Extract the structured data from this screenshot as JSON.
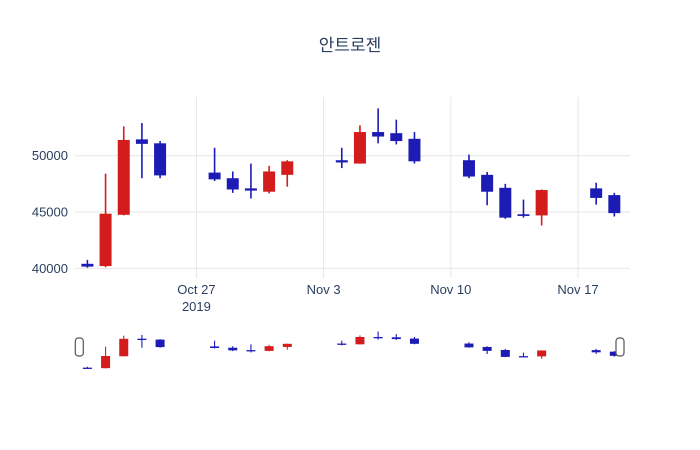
{
  "title": "안트로젠",
  "colors": {
    "background": "#ffffff",
    "text": "#2a3f5f",
    "grid": "#e6e6e6",
    "increasing": "#d41c1c",
    "decreasing": "#1c1cb4",
    "handle_fill": "#ffffff",
    "handle_border": "#555555"
  },
  "chart_data": {
    "type": "candlestick",
    "title": "안트로젠",
    "xlabel": "",
    "ylabel": "",
    "grid": true,
    "legend": false,
    "rangeslider": true,
    "y_ticks": [
      40000,
      45000,
      50000
    ],
    "ylim": [
      39100,
      55250
    ],
    "x_ticks": [
      {
        "label": "Oct 27",
        "sublabel": "2019",
        "day": 6
      },
      {
        "label": "Nov 3",
        "sublabel": "",
        "day": 13
      },
      {
        "label": "Nov 10",
        "sublabel": "",
        "day": 20
      },
      {
        "label": "Nov 17",
        "sublabel": "",
        "day": 27
      }
    ],
    "candles": [
      {
        "date": "2019-10-21",
        "day": 0,
        "open": 40400,
        "high": 40750,
        "low": 40050,
        "close": 40150
      },
      {
        "date": "2019-10-22",
        "day": 1,
        "open": 40200,
        "high": 48400,
        "low": 40100,
        "close": 44850
      },
      {
        "date": "2019-10-23",
        "day": 2,
        "open": 44750,
        "high": 52600,
        "low": 44700,
        "close": 51400
      },
      {
        "date": "2019-10-24",
        "day": 3,
        "open": 51450,
        "high": 52900,
        "low": 48000,
        "close": 51050
      },
      {
        "date": "2019-10-25",
        "day": 4,
        "open": 51100,
        "high": 51300,
        "low": 48000,
        "close": 48250
      },
      {
        "date": "2019-10-28",
        "day": 7,
        "open": 48500,
        "high": 50700,
        "low": 47750,
        "close": 47900
      },
      {
        "date": "2019-10-29",
        "day": 8,
        "open": 48000,
        "high": 48600,
        "low": 46700,
        "close": 47000
      },
      {
        "date": "2019-10-30",
        "day": 9,
        "open": 47100,
        "high": 49300,
        "low": 46200,
        "close": 46900
      },
      {
        "date": "2019-10-31",
        "day": 10,
        "open": 46800,
        "high": 49100,
        "low": 46650,
        "close": 48600
      },
      {
        "date": "2019-11-01",
        "day": 11,
        "open": 48300,
        "high": 49600,
        "low": 47250,
        "close": 49500
      },
      {
        "date": "2019-11-04",
        "day": 14,
        "open": 49600,
        "high": 50700,
        "low": 48900,
        "close": 49400
      },
      {
        "date": "2019-11-05",
        "day": 15,
        "open": 49300,
        "high": 52700,
        "low": 49300,
        "close": 52100
      },
      {
        "date": "2019-11-06",
        "day": 16,
        "open": 52100,
        "high": 54200,
        "low": 51100,
        "close": 51700
      },
      {
        "date": "2019-11-07",
        "day": 17,
        "open": 52000,
        "high": 53200,
        "low": 51000,
        "close": 51300
      },
      {
        "date": "2019-11-08",
        "day": 18,
        "open": 51500,
        "high": 52100,
        "low": 49300,
        "close": 49500
      },
      {
        "date": "2019-11-11",
        "day": 21,
        "open": 49600,
        "high": 50100,
        "low": 48000,
        "close": 48150
      },
      {
        "date": "2019-11-12",
        "day": 22,
        "open": 48300,
        "high": 48550,
        "low": 45600,
        "close": 46800
      },
      {
        "date": "2019-11-13",
        "day": 23,
        "open": 47150,
        "high": 47500,
        "low": 44400,
        "close": 44500
      },
      {
        "date": "2019-11-14",
        "day": 24,
        "open": 44800,
        "high": 46100,
        "low": 44500,
        "close": 44650
      },
      {
        "date": "2019-11-15",
        "day": 25,
        "open": 44700,
        "high": 47000,
        "low": 43800,
        "close": 46950
      },
      {
        "date": "2019-11-18",
        "day": 28,
        "open": 47100,
        "high": 47600,
        "low": 45650,
        "close": 46250
      },
      {
        "date": "2019-11-19",
        "day": 29,
        "open": 46500,
        "high": 46700,
        "low": 44600,
        "close": 44900
      }
    ]
  }
}
